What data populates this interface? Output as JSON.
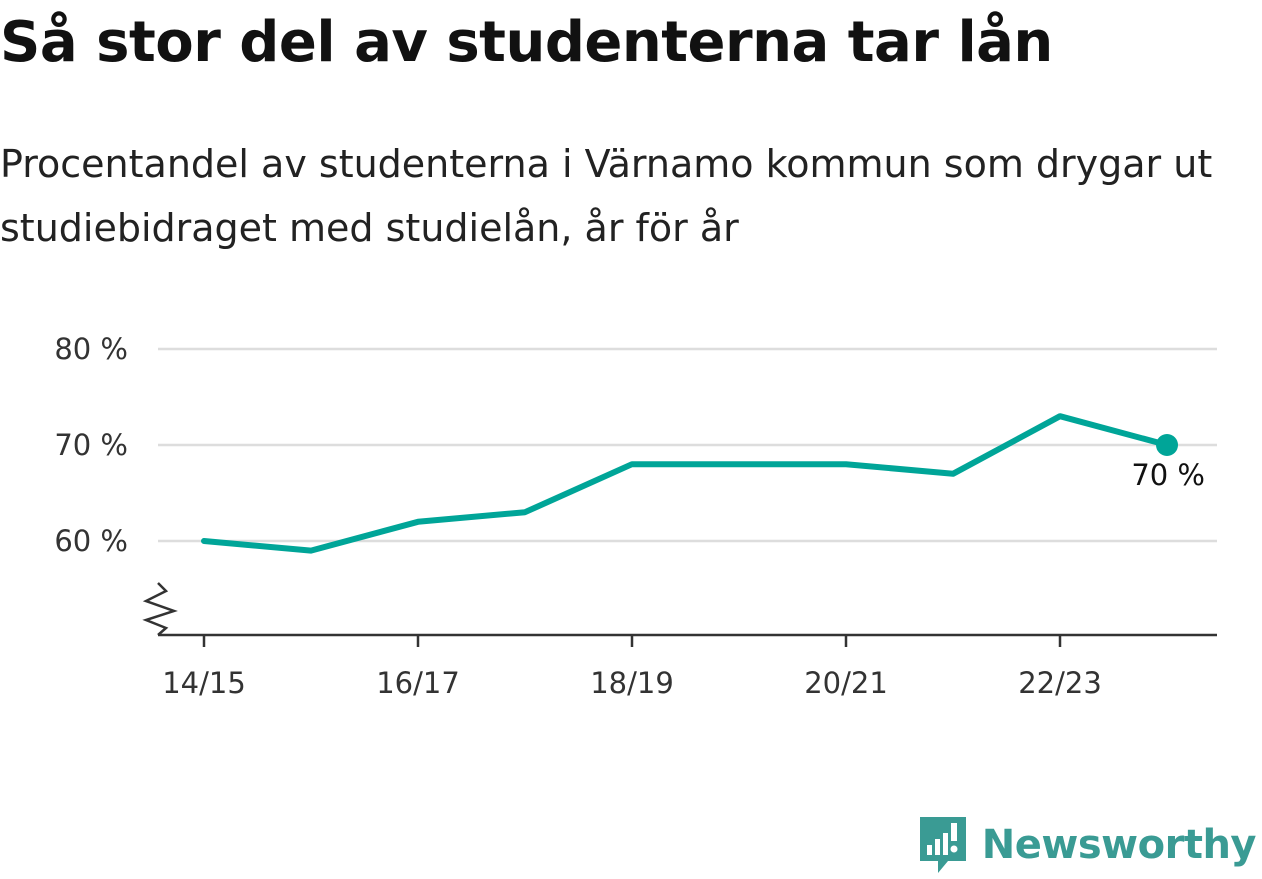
{
  "title": "Så stor del av studenterna tar lån",
  "subtitle": "Procentandel av studenterna i Värnamo kommun som drygar ut studiebidraget med studielån, år för år",
  "brand": {
    "name": "Newsworthy",
    "icon": "newsworthy-logo-icon"
  },
  "colors": {
    "line": "#00a598",
    "grid": "#dddddd",
    "axis": "#333333",
    "brand": "#3a9b94"
  },
  "chart_data": {
    "type": "line",
    "x": [
      "14/15",
      "15/16",
      "16/17",
      "17/18",
      "18/19",
      "19/20",
      "20/21",
      "21/22",
      "22/23",
      "23/24"
    ],
    "x_tick_labels": [
      "14/15",
      "16/17",
      "18/19",
      "20/21",
      "22/23"
    ],
    "series": [
      {
        "values": [
          60,
          59,
          62,
          63,
          68,
          68,
          68,
          67,
          73,
          70
        ]
      }
    ],
    "ylim": [
      50,
      80
    ],
    "y_ticks": [
      60,
      70,
      80
    ],
    "y_tick_labels": [
      "60 %",
      "70 %",
      "80 %"
    ],
    "axis_break": true,
    "grid": true,
    "end_label": "70 %"
  }
}
